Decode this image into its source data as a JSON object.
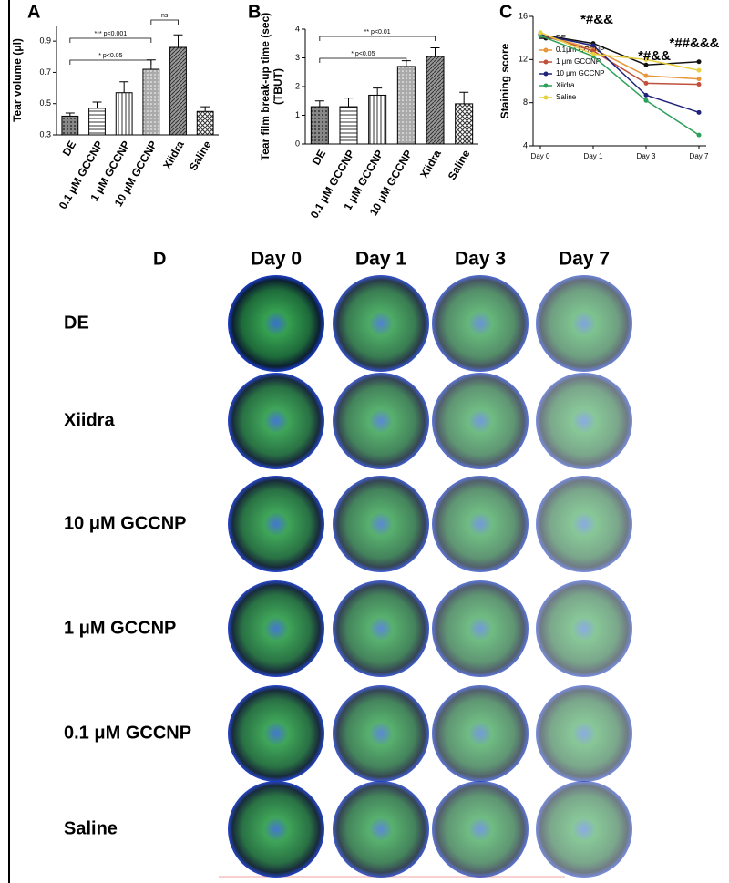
{
  "chart_data": [
    {
      "type": "bar",
      "panel": "A",
      "ylabel": [
        "Tear volume (μl)"
      ],
      "categories": [
        "DE",
        "0.1 μM GCCNP",
        "1 μM GCCNP",
        "10 μM GCCNP",
        "Xiidra",
        "Saline"
      ],
      "values": [
        0.42,
        0.47,
        0.57,
        0.72,
        0.86,
        0.45
      ],
      "errors": [
        0.02,
        0.04,
        0.07,
        0.06,
        0.08,
        0.03
      ],
      "color": "#000000",
      "ylim": [
        0.3,
        1.0
      ],
      "yticks": [
        0.3,
        0.5,
        0.7,
        0.9
      ],
      "annotations": [
        "*** p<0.001",
        "ns",
        "* p<0.05"
      ]
    },
    {
      "type": "bar",
      "panel": "B",
      "ylabel": [
        "Tear film break-up time (sec)",
        "(TBUT)"
      ],
      "categories": [
        "DE",
        "0.1 μM GCCNP",
        "1 μM GCCNP",
        "10 μM GCCNP",
        "Xiidra",
        "Saline"
      ],
      "values": [
        1.3,
        1.3,
        1.7,
        2.7,
        3.05,
        1.4
      ],
      "errors": [
        0.2,
        0.3,
        0.25,
        0.2,
        0.3,
        0.4
      ],
      "color": "#000000",
      "ylim": [
        0,
        4
      ],
      "yticks": [
        0,
        1,
        2,
        3,
        4
      ],
      "annotations": [
        "** p<0.01",
        "* p<0.05"
      ]
    },
    {
      "type": "line",
      "panel": "C",
      "ylabel": [
        "Staining score"
      ],
      "categories": [
        "Day 0",
        "Day 1",
        "Day 3",
        "Day 7"
      ],
      "series": [
        {
          "name": "DE",
          "color": "#111111",
          "values": [
            14.3,
            13.5,
            11.5,
            11.8
          ]
        },
        {
          "name": "0.1μm GCCNP",
          "color": "#e8963a",
          "values": [
            14.3,
            13.0,
            10.5,
            10.2
          ]
        },
        {
          "name": "1 μm GCCNP",
          "color": "#c0503a",
          "values": [
            14.3,
            12.8,
            9.8,
            9.7
          ]
        },
        {
          "name": "10 μm GCCNP",
          "color": "#1f237a",
          "values": [
            14.3,
            13.3,
            8.7,
            7.1
          ]
        },
        {
          "name": "Xiidra",
          "color": "#2ca05a",
          "values": [
            14.2,
            12.3,
            8.2,
            5.0
          ]
        },
        {
          "name": "Saline",
          "color": "#e8d040",
          "values": [
            14.5,
            12.5,
            12.0,
            11.0
          ]
        }
      ],
      "ylim": [
        4,
        16
      ],
      "yticks": [
        4,
        8,
        12,
        16
      ],
      "annotations": [
        "*#&&",
        "*#&&",
        "*##&&&"
      ]
    }
  ],
  "image_grid": {
    "panel": "D",
    "columns": [
      "Day 0",
      "Day 1",
      "Day 3",
      "Day 7"
    ],
    "rows": [
      "DE",
      "Xiidra",
      "10 μM GCCNP",
      "1 μM GCCNP",
      "0.1 μM GCCNP",
      "Saline"
    ]
  }
}
